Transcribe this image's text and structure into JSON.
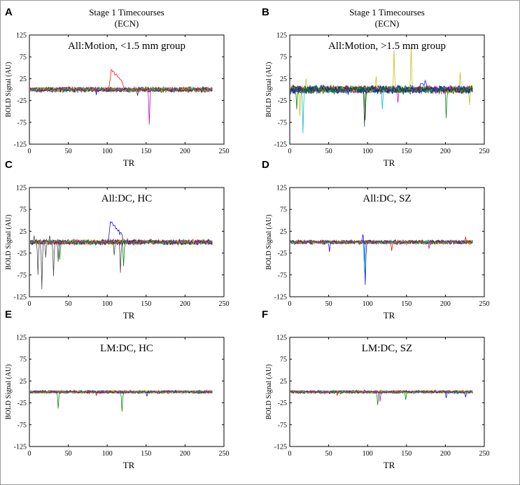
{
  "figure": {
    "colors": [
      "#0000ff",
      "#008000",
      "#ff0000",
      "#00bfbf",
      "#bf00bf",
      "#bfbf00",
      "#404040"
    ]
  },
  "chart_data": [
    {
      "type": "line",
      "panel_letter": "A",
      "heading": [
        "Stage 1 Timecourses",
        "(ECN)"
      ],
      "title": "All:Motion, <1.5 mm group",
      "xlabel": "TR",
      "ylabel": "BOLD Signal (AU)",
      "xlim": [
        0,
        250
      ],
      "ylim": [
        -125,
        125
      ],
      "xticks": [
        0,
        50,
        100,
        150,
        200,
        250
      ],
      "yticks": [
        125,
        75,
        25,
        -25,
        -75,
        -125
      ],
      "n_timepoints": 235,
      "n_series": 14,
      "noise_amplitude": 5,
      "events": [
        {
          "series": 2,
          "center": 104,
          "peak": 45,
          "shape": "plateau",
          "width": 14
        },
        {
          "series": 4,
          "center": 153,
          "peak": -80,
          "shape": "spike"
        },
        {
          "series": 0,
          "center": 85,
          "peak": -12,
          "shape": "spike"
        },
        {
          "series": 0,
          "center": 138,
          "peak": -14,
          "shape": "spike"
        }
      ]
    },
    {
      "type": "line",
      "panel_letter": "B",
      "heading": [
        "Stage 1 Timecourses",
        "(ECN)"
      ],
      "title": "All:Motion, >1.5 mm group",
      "xlabel": "TR",
      "ylabel": "BOLD Signal (AU)",
      "xlim": [
        0,
        250
      ],
      "ylim": [
        -125,
        125
      ],
      "xticks": [
        0,
        50,
        100,
        150,
        200,
        250
      ],
      "yticks": [
        125,
        75,
        25,
        -25,
        -75,
        -125
      ],
      "n_timepoints": 235,
      "n_series": 16,
      "noise_amplitude": 8,
      "events": [
        {
          "series": 5,
          "center": 12,
          "peak": -60,
          "shape": "spike"
        },
        {
          "series": 3,
          "center": 16,
          "peak": -100,
          "shape": "spike"
        },
        {
          "series": 5,
          "center": 20,
          "peak": 25,
          "shape": "spike"
        },
        {
          "series": 1,
          "center": 8,
          "peak": -45,
          "shape": "spike"
        },
        {
          "series": 6,
          "center": 95,
          "peak": -85,
          "shape": "spike"
        },
        {
          "series": 1,
          "center": 96,
          "peak": -70,
          "shape": "spike"
        },
        {
          "series": 5,
          "center": 110,
          "peak": 30,
          "shape": "spike"
        },
        {
          "series": 3,
          "center": 118,
          "peak": -45,
          "shape": "spike"
        },
        {
          "series": 5,
          "center": 133,
          "peak": 90,
          "shape": "spike"
        },
        {
          "series": 5,
          "center": 155,
          "peak": 97,
          "shape": "spike"
        },
        {
          "series": 4,
          "center": 138,
          "peak": -30,
          "shape": "spike"
        },
        {
          "series": 0,
          "center": 168,
          "peak": 20,
          "shape": "plateau",
          "width": 8
        },
        {
          "series": 1,
          "center": 200,
          "peak": -65,
          "shape": "spike"
        },
        {
          "series": 5,
          "center": 218,
          "peak": 40,
          "shape": "spike"
        },
        {
          "series": 5,
          "center": 230,
          "peak": -35,
          "shape": "spike"
        }
      ]
    },
    {
      "type": "line",
      "panel_letter": "C",
      "heading": [],
      "title": "All:DC, HC",
      "xlabel": "TR",
      "ylabel": "BOLD Signal (AU)",
      "xlim": [
        0,
        250
      ],
      "ylim": [
        -125,
        125
      ],
      "xticks": [
        0,
        50,
        100,
        150,
        200,
        250
      ],
      "yticks": [
        125,
        75,
        25,
        -25,
        -75,
        -125
      ],
      "n_timepoints": 235,
      "n_series": 14,
      "noise_amplitude": 5,
      "events": [
        {
          "series": 6,
          "center": 5,
          "peak": 15,
          "shape": "spike"
        },
        {
          "series": 6,
          "center": 10,
          "peak": -75,
          "shape": "spike"
        },
        {
          "series": 6,
          "center": 15,
          "peak": -108,
          "shape": "spike"
        },
        {
          "series": 6,
          "center": 20,
          "peak": -35,
          "shape": "spike"
        },
        {
          "series": 6,
          "center": 25,
          "peak": 15,
          "shape": "spike"
        },
        {
          "series": 6,
          "center": 30,
          "peak": -78,
          "shape": "spike"
        },
        {
          "series": 6,
          "center": 36,
          "peak": -45,
          "shape": "spike"
        },
        {
          "series": 1,
          "center": 38,
          "peak": -40,
          "shape": "spike"
        },
        {
          "series": 0,
          "center": 103,
          "peak": 45,
          "shape": "plateau",
          "width": 14
        },
        {
          "series": 6,
          "center": 108,
          "peak": -30,
          "shape": "spike"
        },
        {
          "series": 6,
          "center": 116,
          "peak": -70,
          "shape": "spike"
        },
        {
          "series": 1,
          "center": 120,
          "peak": -55,
          "shape": "spike"
        },
        {
          "series": 5,
          "center": 125,
          "peak": 10,
          "shape": "spike"
        }
      ]
    },
    {
      "type": "line",
      "panel_letter": "D",
      "heading": [],
      "title": "All:DC, SZ",
      "xlabel": "TR",
      "ylabel": "BOLD Signal (AU)",
      "xlim": [
        0,
        250
      ],
      "ylim": [
        -125,
        125
      ],
      "xticks": [
        0,
        50,
        100,
        150,
        200,
        250
      ],
      "yticks": [
        125,
        75,
        25,
        -25,
        -75,
        -125
      ],
      "n_timepoints": 235,
      "n_series": 14,
      "noise_amplitude": 4,
      "events": [
        {
          "series": 0,
          "center": 96,
          "peak": -98,
          "shape": "spike"
        },
        {
          "series": 3,
          "center": 95,
          "peak": -70,
          "shape": "spike"
        },
        {
          "series": 0,
          "center": 93,
          "peak": 18,
          "shape": "spike"
        },
        {
          "series": 0,
          "center": 50,
          "peak": -22,
          "shape": "spike"
        },
        {
          "series": 2,
          "center": 130,
          "peak": -20,
          "shape": "spike"
        },
        {
          "series": 4,
          "center": 178,
          "peak": -15,
          "shape": "spike"
        },
        {
          "series": 2,
          "center": 225,
          "peak": 12,
          "shape": "spike"
        }
      ]
    },
    {
      "type": "line",
      "panel_letter": "E",
      "heading": [],
      "title": "LM:DC, HC",
      "xlabel": "TR",
      "ylabel": "BOLD Signal (AU)",
      "xlim": [
        0,
        250
      ],
      "ylim": [
        -125,
        125
      ],
      "xticks": [
        0,
        50,
        100,
        150,
        200,
        250
      ],
      "yticks": [
        125,
        75,
        25,
        -25,
        -75,
        -125
      ],
      "n_timepoints": 235,
      "n_series": 14,
      "noise_amplitude": 3,
      "events": [
        {
          "series": 1,
          "center": 36,
          "peak": -38,
          "shape": "spike"
        },
        {
          "series": 1,
          "center": 118,
          "peak": -45,
          "shape": "spike"
        },
        {
          "series": 0,
          "center": 150,
          "peak": -10,
          "shape": "spike"
        },
        {
          "series": 2,
          "center": 85,
          "peak": -8,
          "shape": "spike"
        }
      ]
    },
    {
      "type": "line",
      "panel_letter": "F",
      "heading": [],
      "title": "LM:DC, SZ",
      "xlabel": "TR",
      "ylabel": "BOLD Signal (AU)",
      "xlim": [
        0,
        250
      ],
      "ylim": [
        -125,
        125
      ],
      "xticks": [
        0,
        50,
        100,
        150,
        200,
        250
      ],
      "yticks": [
        125,
        75,
        25,
        -25,
        -75,
        -125
      ],
      "n_timepoints": 235,
      "n_series": 14,
      "noise_amplitude": 3,
      "events": [
        {
          "series": 1,
          "center": 112,
          "peak": -30,
          "shape": "spike"
        },
        {
          "series": 1,
          "center": 148,
          "peak": -18,
          "shape": "spike"
        },
        {
          "series": 4,
          "center": 115,
          "peak": -22,
          "shape": "spike"
        },
        {
          "series": 0,
          "center": 200,
          "peak": -14,
          "shape": "spike"
        },
        {
          "series": 0,
          "center": 225,
          "peak": -12,
          "shape": "spike"
        },
        {
          "series": 2,
          "center": 60,
          "peak": -8,
          "shape": "spike"
        }
      ]
    }
  ]
}
